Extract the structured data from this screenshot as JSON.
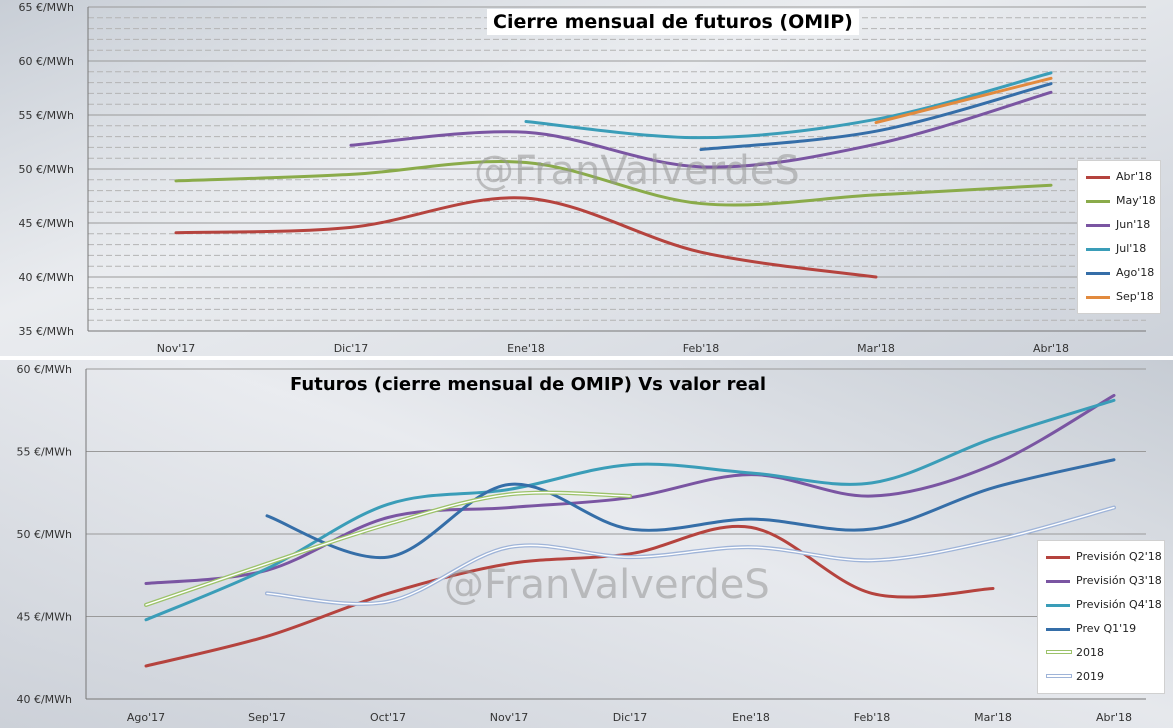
{
  "watermark": "@FranValverdeS",
  "chart_data": [
    {
      "type": "line",
      "title": "Cierre mensual de futuros (OMIP)",
      "ylim": [
        35,
        65
      ],
      "y_ticks": [
        "35 €/MWh",
        "40 €/MWh",
        "45 €/MWh",
        "50 €/MWh",
        "55 €/MWh",
        "60 €/MWh",
        "65 €/MWh"
      ],
      "categories": [
        "Nov'17",
        "Dic'17",
        "Ene'18",
        "Feb'18",
        "Mar'18",
        "Abr'18"
      ],
      "grid": true,
      "legend_position": "right",
      "series": [
        {
          "name": "Abr'18",
          "color": "#b5433e",
          "points": [
            [
              0,
              44.1
            ],
            [
              1,
              44.6
            ],
            [
              2,
              47.3
            ],
            [
              3,
              42.3
            ],
            [
              4,
              40.0
            ]
          ]
        },
        {
          "name": "May'18",
          "color": "#8aab4a",
          "points": [
            [
              0,
              48.9
            ],
            [
              1,
              49.5
            ],
            [
              2,
              50.6
            ],
            [
              3,
              46.8
            ],
            [
              4,
              47.6
            ],
            [
              5,
              48.5
            ]
          ]
        },
        {
          "name": "Jun'18",
          "color": "#7a55a2",
          "points": [
            [
              1,
              52.2
            ],
            [
              2,
              53.4
            ],
            [
              3,
              50.2
            ],
            [
              4,
              52.3
            ],
            [
              5,
              57.1
            ]
          ]
        },
        {
          "name": "Jul'18",
          "color": "#3a9db8",
          "points": [
            [
              2,
              54.4
            ],
            [
              3,
              52.9
            ],
            [
              4,
              54.6
            ],
            [
              5,
              58.9
            ]
          ]
        },
        {
          "name": "Ago'18",
          "color": "#356ea8",
          "points": [
            [
              3,
              51.8
            ],
            [
              4,
              53.5
            ],
            [
              5,
              57.9
            ]
          ]
        },
        {
          "name": "Sep'18",
          "color": "#e28a3e",
          "points": [
            [
              4,
              54.3
            ],
            [
              5,
              58.4
            ]
          ]
        }
      ]
    },
    {
      "type": "line",
      "title": "Futuros (cierre mensual de OMIP) Vs valor real",
      "ylim": [
        40,
        60
      ],
      "y_ticks": [
        "40 €/MWh",
        "45 €/MWh",
        "50 €/MWh",
        "55 €/MWh",
        "60 €/MWh"
      ],
      "categories": [
        "Ago'17",
        "Sep'17",
        "Oct'17",
        "Nov'17",
        "Dic'17",
        "Ene'18",
        "Feb'18",
        "Mar'18",
        "Abr'18"
      ],
      "grid": true,
      "legend_position": "right",
      "series": [
        {
          "name": "Previsión Q2'18",
          "color": "#b5433e",
          "points": [
            [
              0,
              42.0
            ],
            [
              1,
              43.8
            ],
            [
              2,
              46.4
            ],
            [
              3,
              48.2
            ],
            [
              4,
              48.8
            ],
            [
              5,
              50.4
            ],
            [
              6,
              46.4
            ],
            [
              7,
              46.7
            ]
          ]
        },
        {
          "name": "Previsión Q3'18",
          "color": "#7a55a2",
          "points": [
            [
              0,
              47.0
            ],
            [
              1,
              47.8
            ],
            [
              2,
              51.0
            ],
            [
              3,
              51.6
            ],
            [
              4,
              52.2
            ],
            [
              5,
              53.6
            ],
            [
              6,
              52.3
            ],
            [
              7,
              54.2
            ],
            [
              8,
              58.4
            ]
          ]
        },
        {
          "name": "Previsión Q4'18",
          "color": "#3a9db8",
          "points": [
            [
              0,
              44.8
            ],
            [
              1,
              47.9
            ],
            [
              2,
              51.8
            ],
            [
              3,
              52.7
            ],
            [
              4,
              54.2
            ],
            [
              5,
              53.7
            ],
            [
              6,
              53.1
            ],
            [
              7,
              55.8
            ],
            [
              8,
              58.1
            ]
          ]
        },
        {
          "name": "Prev Q1'19",
          "color": "#356ea8",
          "points": [
            [
              1,
              51.1
            ],
            [
              2,
              48.6
            ],
            [
              3,
              53.0
            ],
            [
              4,
              50.3
            ],
            [
              5,
              50.9
            ],
            [
              6,
              50.3
            ],
            [
              7,
              52.8
            ],
            [
              8,
              54.5
            ]
          ]
        },
        {
          "name": "2018",
          "color": "#9cc26a",
          "double": true,
          "points": [
            [
              0,
              45.7
            ],
            [
              1,
              48.2
            ],
            [
              2,
              50.6
            ],
            [
              3,
              52.4
            ],
            [
              4,
              52.3
            ]
          ]
        },
        {
          "name": "2019",
          "color": "#9fb4d8",
          "double": true,
          "points": [
            [
              1,
              46.4
            ],
            [
              2,
              45.9
            ],
            [
              3,
              49.2
            ],
            [
              4,
              48.6
            ],
            [
              5,
              49.2
            ],
            [
              6,
              48.4
            ],
            [
              7,
              49.6
            ],
            [
              8,
              51.6
            ]
          ]
        }
      ]
    }
  ]
}
